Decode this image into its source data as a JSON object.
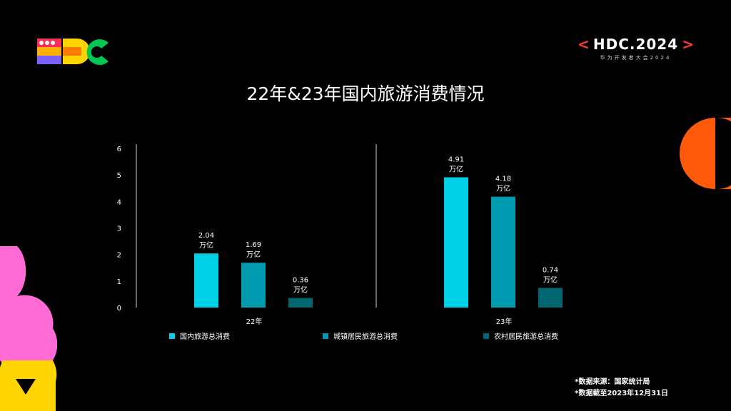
{
  "header": {
    "brand_bracket_left": "<",
    "brand_name": "HDC.2024",
    "brand_bracket_right": ">",
    "brand_subtitle": "华为开发者大会2024"
  },
  "title": "22年&23年国内旅游消费情况",
  "chart_data": {
    "type": "bar",
    "title": "22年&23年国内旅游消费情况",
    "categories": [
      "22年",
      "23年"
    ],
    "series": [
      {
        "name": "国内旅游总消费",
        "values": [
          2.04,
          4.91
        ],
        "color": "#00d0e6",
        "labels": [
          "2.04\n万亿",
          "4.91\n万亿"
        ]
      },
      {
        "name": "城镇居民旅游总消费",
        "values": [
          1.69,
          4.18
        ],
        "color": "#009bb0",
        "labels": [
          "1.69\n万亿",
          "4.18\n万亿"
        ]
      },
      {
        "name": "农村居民旅游总消费",
        "values": [
          0.36,
          0.74
        ],
        "color": "#006670",
        "labels": [
          "0.36\n万亿",
          "0.74\n万亿"
        ]
      }
    ],
    "yticks": [
      "0",
      "1",
      "2",
      "3",
      "4",
      "5",
      "6"
    ],
    "ylim": [
      0,
      6
    ],
    "xlabel": "",
    "ylabel": "",
    "grid": false,
    "legend_position": "bottom"
  },
  "footnotes": {
    "source": "*数据来源：国家统计局",
    "cutoff": "*数据截至2023年12月31日"
  },
  "colors": {
    "background": "#000000",
    "accent_red": "#ff3b30",
    "deco_orange": "#ff5a0a",
    "deco_pink": "#ff6ad5",
    "deco_yellow": "#ffd400"
  }
}
